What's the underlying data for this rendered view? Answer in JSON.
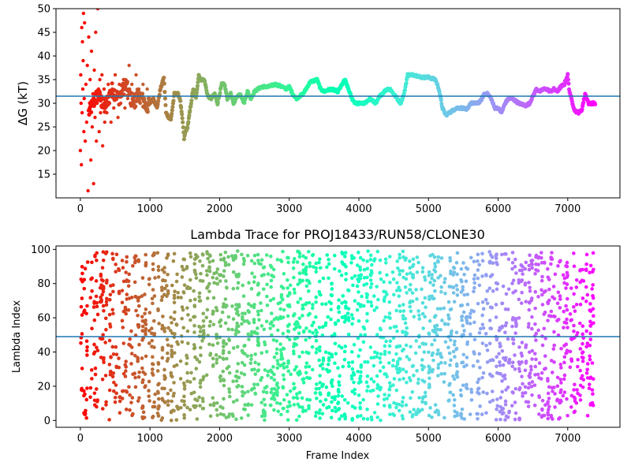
{
  "chart_data": [
    {
      "type": "scatter",
      "title": "",
      "xlabel": "",
      "ylabel": "ΔG (kT)",
      "xlim": [
        -350,
        7750
      ],
      "ylim": [
        10,
        50
      ],
      "xticks": [
        0,
        1000,
        2000,
        3000,
        4000,
        5000,
        6000,
        7000
      ],
      "yticks": [
        15,
        20,
        25,
        30,
        35,
        40,
        45,
        50
      ],
      "xtick_labels": [
        "0",
        "1000",
        "2000",
        "3000",
        "4000",
        "5000",
        "6000",
        "7000"
      ],
      "ytick_labels": [
        "15",
        "20",
        "25",
        "30",
        "35",
        "40",
        "45",
        "50"
      ],
      "color_by": "frame index (rainbow colormap, late frames violet, early frames red)",
      "hline": 31.5,
      "hline_color": "#1f77b4",
      "trace": {
        "x": [
          120,
          250,
          350,
          450,
          550,
          650,
          750,
          850,
          950,
          1050,
          1100,
          1150,
          1200,
          1230,
          1270,
          1300,
          1350,
          1400,
          1430,
          1470,
          1490,
          1510,
          1540,
          1580,
          1620,
          1660,
          1700,
          1730,
          1780,
          1830,
          1880,
          1930,
          1970,
          2030,
          2070,
          2110,
          2160,
          2200,
          2250,
          2300,
          2350,
          2400,
          2450,
          2500,
          2550,
          2600,
          2700,
          2800,
          2900,
          2950,
          3000,
          3050,
          3100,
          3200,
          3300,
          3400,
          3450,
          3500,
          3600,
          3700,
          3800,
          3850,
          3900,
          3950,
          4000,
          4100,
          4150,
          4250,
          4300,
          4400,
          4450,
          4500,
          4550,
          4600,
          4650,
          4700,
          4800,
          4900,
          5000,
          5100,
          5150,
          5200,
          5250,
          5300,
          5400,
          5500,
          5550,
          5600,
          5700,
          5750,
          5800,
          5850,
          5900,
          5950,
          6000,
          6050,
          6100,
          6150,
          6200,
          6300,
          6400,
          6450,
          6500,
          6550,
          6600,
          6650,
          6700,
          6750,
          6800,
          6850,
          6900,
          6950,
          7000,
          7020,
          7050,
          7100,
          7150,
          7200,
          7250,
          7300,
          7350,
          7400
        ],
        "y": [
          28,
          32,
          29,
          33,
          31,
          34,
          30,
          32,
          29,
          31,
          29,
          33,
          35.5,
          28,
          27,
          26.5,
          32,
          32,
          31,
          26,
          22.5,
          24,
          25,
          29,
          33,
          31,
          36,
          35,
          35,
          31.5,
          31,
          32,
          30,
          34,
          34,
          31,
          32,
          30,
          31.5,
          32,
          30,
          32.5,
          31,
          32.5,
          33,
          33.5,
          33.5,
          34,
          33.5,
          33,
          33.5,
          32,
          31,
          32,
          34.5,
          35,
          33,
          32.5,
          33,
          32.5,
          35,
          33,
          31,
          30,
          30,
          30,
          31,
          30,
          31.5,
          33,
          33,
          32,
          31,
          30,
          32,
          36,
          36,
          35.5,
          35.5,
          35,
          33,
          29,
          27.5,
          28,
          29,
          29,
          28.5,
          30,
          30,
          30.5,
          32,
          32,
          31,
          29,
          29,
          28,
          30,
          31,
          31,
          30,
          29.5,
          30,
          31.5,
          33,
          32.5,
          33,
          33,
          32.5,
          33,
          32.5,
          33.5,
          34,
          36,
          33,
          31,
          28.5,
          28,
          28.5,
          32,
          30,
          30,
          30
        ]
      },
      "early_points": {
        "x": [
          0,
          10,
          20,
          30,
          40,
          5,
          15,
          25,
          35,
          45,
          50,
          55,
          60,
          70,
          80,
          90,
          100,
          110,
          120,
          130,
          140,
          150,
          160,
          170,
          180,
          190,
          200,
          210,
          220,
          230,
          240,
          250,
          260,
          270,
          280,
          290,
          300,
          310,
          320,
          330,
          340,
          350,
          360,
          380,
          400,
          420,
          440,
          460,
          480,
          500,
          520,
          540,
          560,
          580,
          600,
          620,
          640,
          660,
          680,
          700,
          720,
          740,
          760,
          780,
          800,
          820,
          840,
          860,
          880,
          900,
          920,
          940,
          960
        ],
        "y": [
          20,
          30,
          46,
          43,
          39,
          36,
          17,
          28,
          33,
          49,
          24,
          31,
          47,
          22,
          34,
          26,
          38,
          11.5,
          44,
          29,
          35,
          18,
          41,
          25,
          32,
          13,
          37,
          27,
          45,
          22,
          30,
          50,
          33,
          24,
          35,
          28,
          31,
          36,
          21,
          29,
          33,
          26,
          31,
          28,
          34,
          30,
          26,
          33,
          29,
          36,
          31,
          27,
          34,
          30,
          32,
          35,
          29,
          33,
          31,
          38,
          30,
          34,
          32,
          29,
          36,
          31,
          33,
          30,
          32,
          34,
          31,
          30,
          33
        ]
      }
    },
    {
      "type": "scatter",
      "title": "Lambda Trace for PROJ18433/RUN58/CLONE30",
      "xlabel": "Frame Index",
      "ylabel": "Lambda Index",
      "xlim": [
        -350,
        7750
      ],
      "ylim": [
        -4,
        102
      ],
      "xticks": [
        0,
        1000,
        2000,
        3000,
        4000,
        5000,
        6000,
        7000
      ],
      "yticks": [
        0,
        20,
        40,
        60,
        80,
        100
      ],
      "xtick_labels": [
        "0",
        "1000",
        "2000",
        "3000",
        "4000",
        "5000",
        "6000",
        "7000"
      ],
      "ytick_labels": [
        "0",
        "20",
        "40",
        "60",
        "80",
        "100"
      ],
      "color_by": "frame index (rainbow colormap, late frames violet, early frames red)",
      "hline": 49,
      "hline_color": "#1f77b4",
      "n_frames": 7400,
      "value_range": [
        0,
        99
      ]
    }
  ]
}
